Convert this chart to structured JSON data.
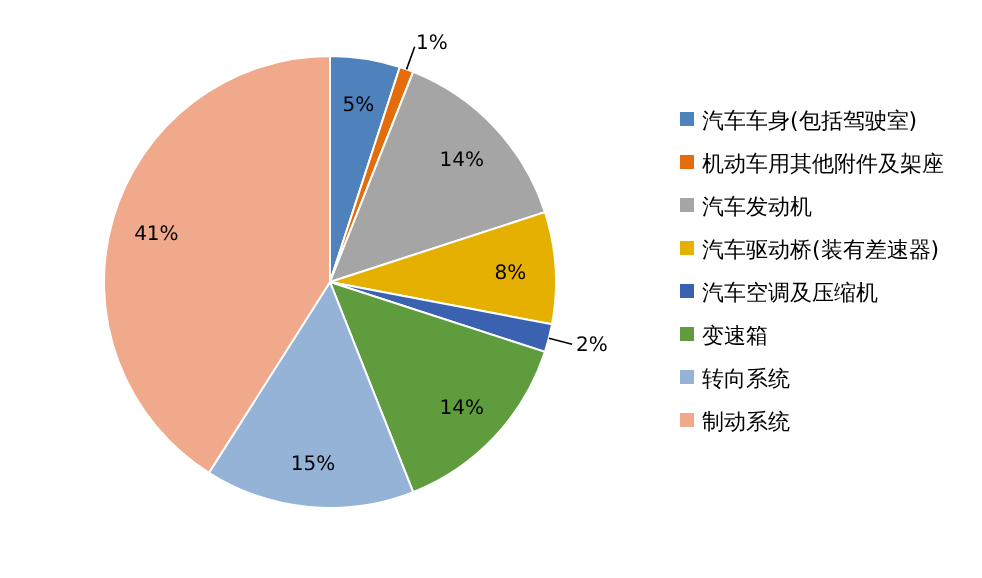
{
  "chart_data": {
    "type": "pie",
    "categories": [
      "汽车车身(包括驾驶室)",
      "机动车用其他附件及架座",
      "汽车发动机",
      "汽车驱动桥(装有差速器)",
      "汽车空调及压缩机",
      "变速箱",
      "转向系统",
      "制动系统"
    ],
    "values": [
      5,
      1,
      14,
      8,
      2,
      14,
      15,
      41
    ],
    "value_labels": [
      "5%",
      "1%",
      "14%",
      "8%",
      "2%",
      "14%",
      "15%",
      "41%"
    ],
    "colors": [
      "#4f81bd",
      "#e46c0a",
      "#a5a5a5",
      "#e6b000",
      "#3a62b0",
      "#5e9c3e",
      "#95b3d7",
      "#f0a98a"
    ],
    "legend": "right"
  }
}
